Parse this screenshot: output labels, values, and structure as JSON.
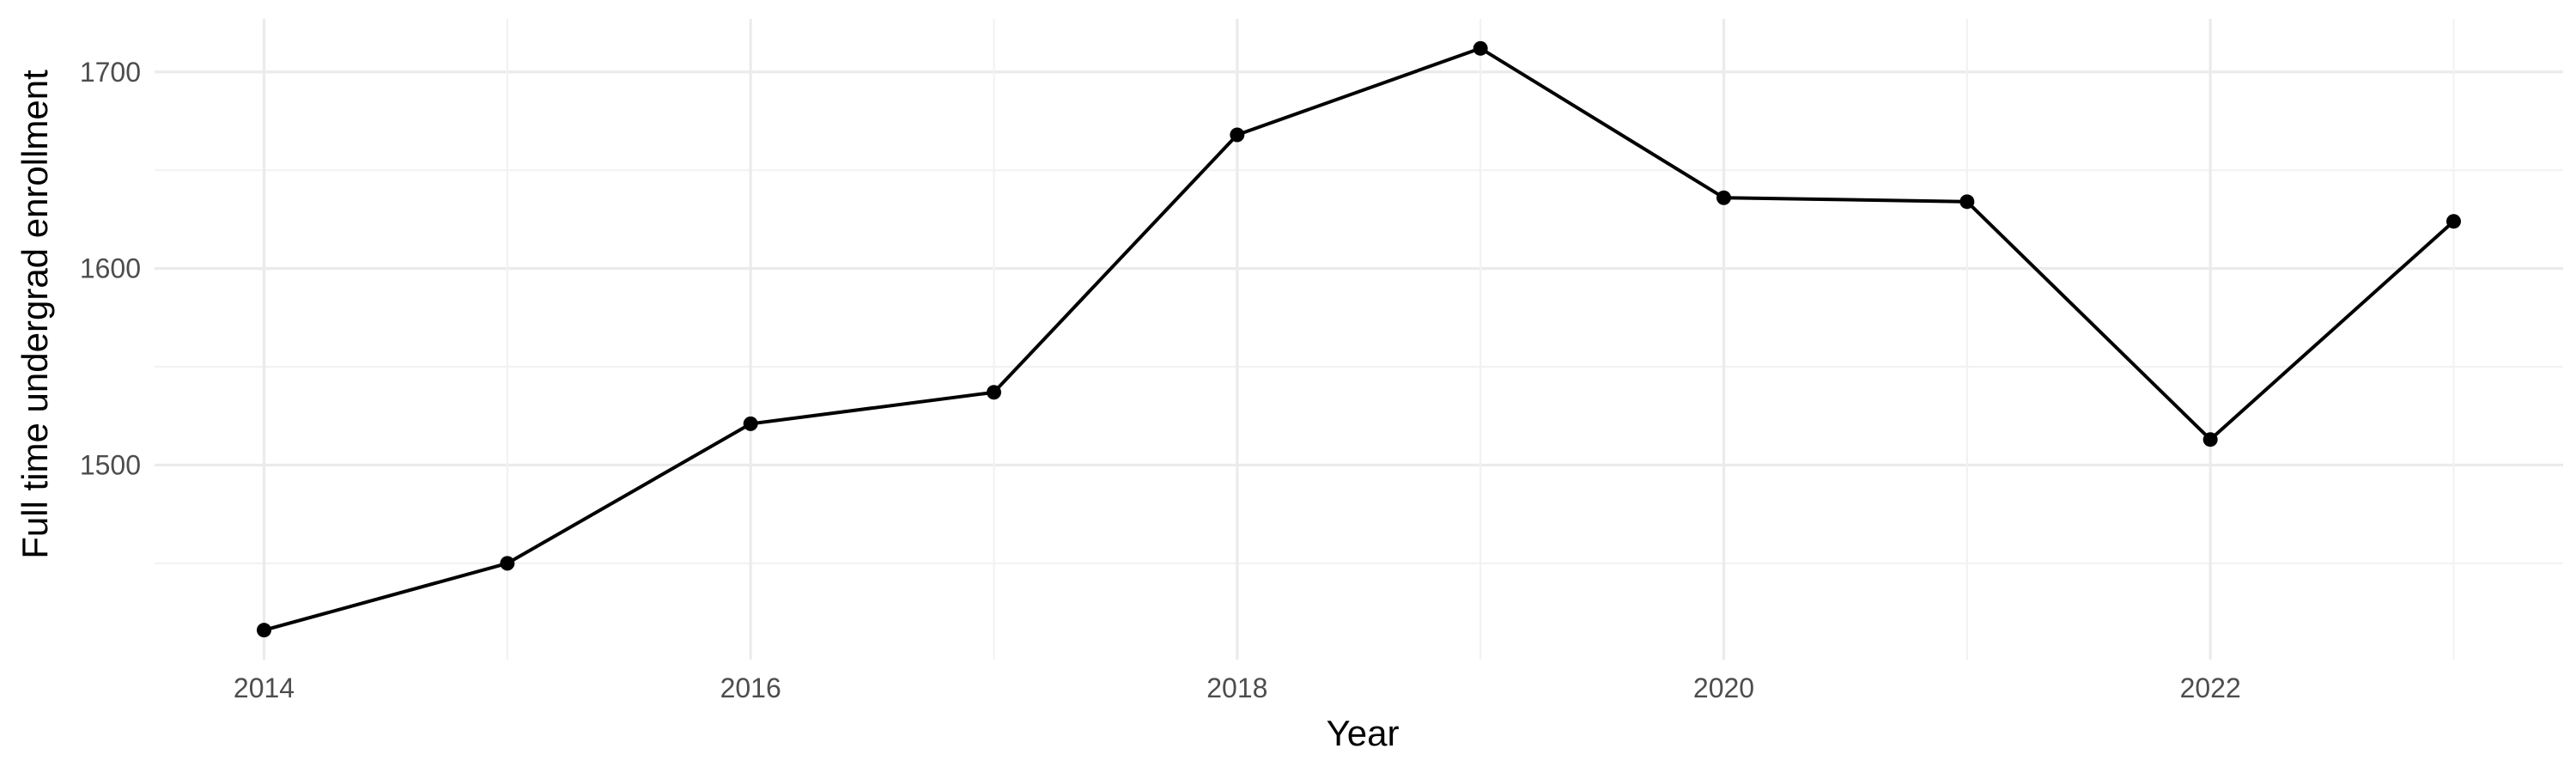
{
  "chart_data": {
    "type": "line",
    "title": "",
    "xlabel": "Year",
    "ylabel": "Full time undergrad enrollment",
    "x": [
      2014,
      2015,
      2016,
      2017,
      2018,
      2019,
      2020,
      2021,
      2022,
      2023
    ],
    "values": [
      1416,
      1450,
      1521,
      1537,
      1668,
      1712,
      1636,
      1634,
      1513,
      1624
    ],
    "x_ticks": [
      "2014",
      "2016",
      "2018",
      "2020",
      "2022"
    ],
    "y_ticks": [
      "1500",
      "1600",
      "1700"
    ],
    "xlim": [
      2013.55,
      2023.45
    ],
    "ylim": [
      1401,
      1727
    ],
    "grid": true,
    "colors": {
      "line": "#000000",
      "point": "#000000",
      "grid": "#ebebeb"
    }
  }
}
